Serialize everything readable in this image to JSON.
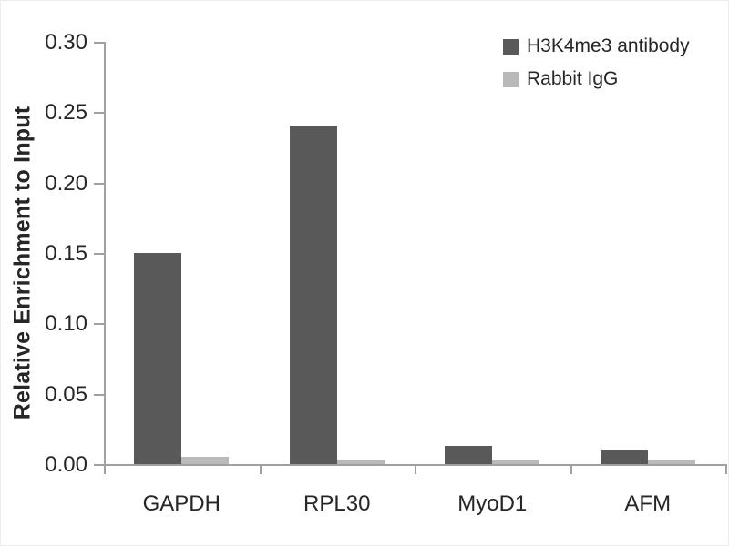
{
  "chart_data": {
    "type": "bar",
    "title": "",
    "xlabel": "",
    "ylabel": "Relative Enrichment to Input",
    "categories": [
      "GAPDH",
      "RPL30",
      "MyoD1",
      "AFM"
    ],
    "series": [
      {
        "name": "H3K4me3 antibody",
        "color": "#595959",
        "values": [
          0.15,
          0.24,
          0.013,
          0.01
        ]
      },
      {
        "name": "Rabbit IgG",
        "color": "#b9b9b9",
        "values": [
          0.005,
          0.003,
          0.003,
          0.003
        ]
      }
    ],
    "ylim": [
      0,
      0.3
    ],
    "yticks": [
      {
        "value": 0.0,
        "label": "0.00"
      },
      {
        "value": 0.05,
        "label": "0.05"
      },
      {
        "value": 0.1,
        "label": "0.10"
      },
      {
        "value": 0.15,
        "label": "0.15"
      },
      {
        "value": 0.2,
        "label": "0.20"
      },
      {
        "value": 0.25,
        "label": "0.25"
      },
      {
        "value": 0.3,
        "label": "0.30"
      }
    ],
    "grid": false,
    "legend_position": "top-right",
    "axis_color": "#a0a0a0",
    "text_color": "#262626",
    "background": "#ffffff"
  }
}
